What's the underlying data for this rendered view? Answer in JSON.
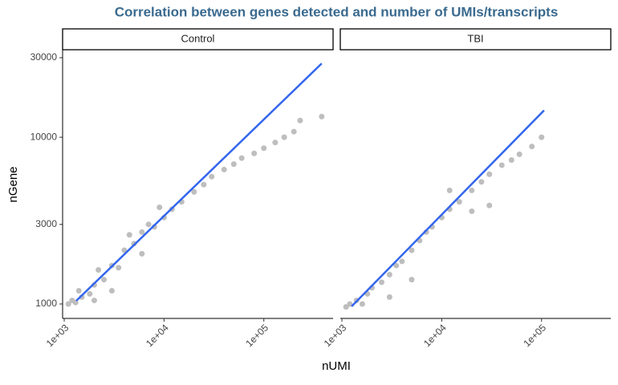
{
  "chart_data": {
    "type": "scatter",
    "title": "Correlation between genes detected and number of UMIs/transcripts",
    "x_label": "nUMI",
    "y_label": "nGene",
    "log_x": true,
    "log_y": true,
    "point_color": "#bebebe",
    "fit_color": "#3366ee",
    "xlim": [
      963,
      494000
    ],
    "xticks": [
      {
        "value": 1000,
        "label": "1e+03"
      },
      {
        "value": 10000,
        "label": "1e+04"
      },
      {
        "value": 100000,
        "label": "1e+05"
      }
    ],
    "ylim": [
      819,
      33500
    ],
    "yticks": [
      1000,
      3000,
      10000,
      30000
    ],
    "panels": [
      {
        "label": "Control",
        "x": [
          1100,
          1200,
          1300,
          1500,
          1400,
          1800,
          2000,
          2500,
          2200,
          3000,
          3500,
          4000,
          5000,
          4500,
          6000,
          7000,
          8000,
          10000,
          12000,
          15000,
          20000,
          25000,
          30000,
          40000,
          50000,
          60000,
          80000,
          100000,
          130000,
          160000,
          200000,
          231000,
          380000,
          9000,
          6000,
          3000,
          2000
        ],
        "y": [
          1000,
          1050,
          1020,
          1100,
          1200,
          1150,
          1300,
          1400,
          1600,
          1700,
          1650,
          2100,
          2300,
          2600,
          2700,
          3000,
          2900,
          3300,
          3700,
          4100,
          4700,
          5200,
          5800,
          6400,
          6900,
          7500,
          8000,
          8600,
          9300,
          10000,
          10800,
          12600,
          13300,
          3800,
          2000,
          1200,
          1050
        ],
        "fit_x": [
          1320,
          380000
        ],
        "fit_y": [
          1045,
          27700
        ]
      },
      {
        "label": "TBI",
        "x": [
          1100,
          1200,
          1400,
          1600,
          1800,
          2000,
          2500,
          3000,
          3500,
          4000,
          5000,
          6000,
          7000,
          8000,
          10000,
          12000,
          15000,
          20000,
          25000,
          30000,
          40000,
          50000,
          60000,
          80000,
          100000,
          20000,
          30000,
          5000,
          3000,
          12000
        ],
        "y": [
          960,
          1000,
          1050,
          1000,
          1150,
          1250,
          1350,
          1500,
          1700,
          1800,
          2100,
          2400,
          2700,
          2900,
          3300,
          3700,
          4100,
          4800,
          5400,
          6000,
          6800,
          7300,
          7900,
          8800,
          10000,
          3600,
          3900,
          1400,
          1100,
          4800
        ],
        "fit_x": [
          1250,
          106000
        ],
        "fit_y": [
          967,
          14500
        ]
      }
    ]
  }
}
